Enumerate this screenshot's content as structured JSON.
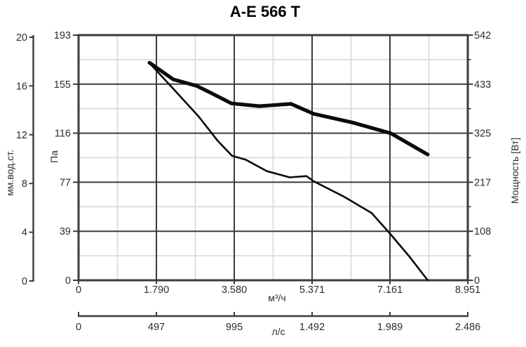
{
  "title": "A-E 566 T",
  "chart_data": {
    "type": "line",
    "title": "A-E 566 T",
    "legend": "none",
    "grid": "major dark + minor light, on",
    "axes": {
      "x_m3h": {
        "unit": "м³/ч",
        "tick_labels": [
          "0",
          "1.790",
          "3.580",
          "5.371",
          "7.161",
          "8.951"
        ],
        "tick_values": [
          0,
          1790,
          3580,
          5371,
          7161,
          8951
        ],
        "range": [
          0,
          8951
        ],
        "position": "bottom-primary"
      },
      "x_ls": {
        "unit": "л/с",
        "tick_labels": [
          "0",
          "497",
          "995",
          "1.492",
          "1.989",
          "2.486"
        ],
        "tick_values": [
          0,
          497,
          995,
          1492,
          1989,
          2486
        ],
        "range": [
          0,
          2486
        ],
        "position": "bottom-secondary"
      },
      "y_mm": {
        "label": "мм.вод.ст.",
        "tick_labels": [
          "20",
          "16",
          "12",
          "8",
          "4",
          "0"
        ],
        "tick_values": [
          20,
          16,
          12,
          8,
          4,
          0
        ],
        "range": [
          0,
          20
        ],
        "position": "left-outer"
      },
      "y_pa": {
        "label": "Па",
        "tick_labels": [
          "193",
          "155",
          "116",
          "77",
          "39",
          "0"
        ],
        "tick_values": [
          193,
          155,
          116,
          77,
          39,
          0
        ],
        "range": [
          0,
          193
        ],
        "position": "left-inner"
      },
      "y_w": {
        "label": "Мощность [Вт]",
        "tick_labels": [
          "542",
          "433",
          "325",
          "217",
          "108",
          "0"
        ],
        "tick_values": [
          542,
          433,
          325,
          217,
          108,
          0
        ],
        "range": [
          0,
          542
        ],
        "position": "right"
      }
    },
    "series": [
      {
        "name": "static-pressure-curve",
        "y_axis": "pa",
        "line": "thin",
        "points": [
          [
            1630,
            171
          ],
          [
            2145,
            152
          ],
          [
            2760,
            129
          ],
          [
            3195,
            110
          ],
          [
            3530,
            98
          ],
          [
            3840,
            95
          ],
          [
            4325,
            86
          ],
          [
            4855,
            81
          ],
          [
            5240,
            82
          ],
          [
            5405,
            78
          ],
          [
            6095,
            66
          ],
          [
            6740,
            53
          ],
          [
            7180,
            36
          ],
          [
            7600,
            19
          ],
          [
            8030,
            0
          ]
        ]
      },
      {
        "name": "power-curve",
        "y_axis": "w",
        "line": "thick",
        "points": [
          [
            1630,
            481
          ],
          [
            2180,
            444
          ],
          [
            2710,
            430
          ],
          [
            3030,
            415
          ],
          [
            3515,
            391
          ],
          [
            4160,
            385
          ],
          [
            4885,
            390
          ],
          [
            5405,
            368
          ],
          [
            6290,
            349
          ],
          [
            7180,
            325
          ],
          [
            8030,
            278
          ]
        ]
      }
    ],
    "colors": {
      "curve": "#0b0b0b",
      "grid_major": "#3b3b3b",
      "grid_minor": "#dcdcdc",
      "label": "#2d2d2d",
      "background": "#ffffff"
    }
  }
}
